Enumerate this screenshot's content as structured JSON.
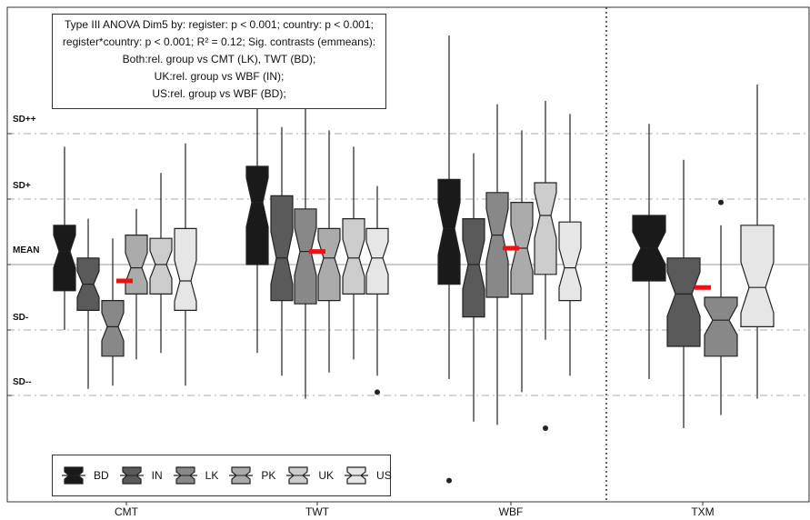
{
  "chart_data": {
    "type": "boxplot",
    "categories": [
      "CMT",
      "TWT",
      "WBF",
      "TXM"
    ],
    "y_levels": [
      {
        "label": "SD++",
        "value": 2
      },
      {
        "label": "SD+",
        "value": 1
      },
      {
        "label": "MEAN",
        "value": 0
      },
      {
        "label": "SD-",
        "value": -1
      },
      {
        "label": "SD--",
        "value": -2
      }
    ],
    "ylim": [
      -3.6,
      3.4
    ],
    "grid": "dashed at SD levels",
    "legend_position": "bottom-left",
    "annotation_lines": [
      "Type III ANOVA Dim5 by: register: p < 0.001; country: p < 0.001;",
      "register*country: p < 0.001; R² = 0.12; Sig. contrasts (emmeans):",
      "Both:rel. group vs CMT (LK), TWT (BD);",
      "UK:rel. group vs WBF (IN);",
      "US:rel. group vs WBF (BD);"
    ],
    "series": [
      {
        "name": "BD",
        "color": "#1a1a1a"
      },
      {
        "name": "IN",
        "color": "#5a5a5a"
      },
      {
        "name": "LK",
        "color": "#888888"
      },
      {
        "name": "PK",
        "color": "#ababab"
      },
      {
        "name": "UK",
        "color": "#cccccc"
      },
      {
        "name": "US",
        "color": "#e6e6e6"
      }
    ],
    "groups": [
      {
        "category": "CMT",
        "mean": -0.25,
        "boxes": [
          {
            "series": "BD",
            "whisker_low": -1.0,
            "q1": -0.4,
            "median": 0.2,
            "q3": 0.6,
            "whisker_high": 1.8
          },
          {
            "series": "IN",
            "whisker_low": -1.9,
            "q1": -0.7,
            "median": -0.3,
            "q3": 0.1,
            "whisker_high": 0.7
          },
          {
            "series": "LK",
            "whisker_low": -1.85,
            "q1": -1.4,
            "median": -0.95,
            "q3": -0.55,
            "whisker_high": 0.4
          },
          {
            "series": "PK",
            "whisker_low": -1.45,
            "q1": -0.45,
            "median": -0.05,
            "q3": 0.45,
            "whisker_high": 0.85
          },
          {
            "series": "UK",
            "whisker_low": -1.35,
            "q1": -0.45,
            "median": 0.0,
            "q3": 0.4,
            "whisker_high": 1.4
          },
          {
            "series": "US",
            "whisker_low": -1.85,
            "q1": -0.7,
            "median": -0.25,
            "q3": 0.55,
            "whisker_high": 1.85
          }
        ]
      },
      {
        "category": "TWT",
        "mean": 0.2,
        "boxes": [
          {
            "series": "BD",
            "whisker_low": -1.35,
            "q1": 0.0,
            "median": 0.95,
            "q3": 1.5,
            "whisker_high": 2.4
          },
          {
            "series": "IN",
            "whisker_low": -1.7,
            "q1": -0.55,
            "median": 0.1,
            "q3": 1.05,
            "whisker_high": 2.1
          },
          {
            "series": "LK",
            "whisker_low": -2.05,
            "q1": -0.6,
            "median": 0.2,
            "q3": 0.85,
            "whisker_high": 2.45
          },
          {
            "series": "PK",
            "whisker_low": -1.65,
            "q1": -0.55,
            "median": 0.1,
            "q3": 0.55,
            "whisker_high": 2.05
          },
          {
            "series": "UK",
            "whisker_low": -1.45,
            "q1": -0.45,
            "median": 0.1,
            "q3": 0.7,
            "whisker_high": 1.8
          },
          {
            "series": "US",
            "whisker_low": -1.7,
            "q1": -0.45,
            "median": 0.1,
            "q3": 0.55,
            "whisker_high": 1.2
          },
          {
            "series": "US",
            "outliers": [
              -1.95
            ]
          }
        ]
      },
      {
        "category": "WBF",
        "mean": 0.25,
        "boxes": [
          {
            "series": "BD",
            "whisker_low": -1.75,
            "q1": -0.3,
            "median": 0.55,
            "q3": 1.3,
            "whisker_high": 3.5,
            "outliers": [
              -3.3
            ]
          },
          {
            "series": "IN",
            "whisker_low": -2.4,
            "q1": -0.8,
            "median": 0.0,
            "q3": 0.7,
            "whisker_high": 1.7
          },
          {
            "series": "LK",
            "whisker_low": -2.45,
            "q1": -0.5,
            "median": 0.45,
            "q3": 1.1,
            "whisker_high": 2.45
          },
          {
            "series": "PK",
            "whisker_low": -1.95,
            "q1": -0.45,
            "median": 0.25,
            "q3": 0.95,
            "whisker_high": 2.05
          },
          {
            "series": "UK",
            "whisker_low": -1.15,
            "q1": -0.15,
            "median": 0.75,
            "q3": 1.25,
            "whisker_high": 2.5,
            "outliers": [
              -2.5
            ]
          },
          {
            "series": "US",
            "whisker_low": -1.7,
            "q1": -0.55,
            "median": -0.05,
            "q3": 0.65,
            "whisker_high": 2.3
          }
        ]
      },
      {
        "category": "TXM",
        "mean": -0.35,
        "boxes": [
          {
            "series": "BD",
            "whisker_low": -1.75,
            "q1": -0.25,
            "median": 0.25,
            "q3": 0.75,
            "whisker_high": 2.15
          },
          {
            "series": "IN",
            "whisker_low": -2.5,
            "q1": -1.25,
            "median": -0.45,
            "q3": 0.1,
            "whisker_high": 1.6
          },
          {
            "series": "LK",
            "whisker_low": -2.3,
            "q1": -1.4,
            "median": -0.85,
            "q3": -0.5,
            "whisker_high": 0.6,
            "outliers": [
              0.95
            ]
          },
          {
            "series": "US",
            "whisker_low": -2.05,
            "q1": -0.95,
            "median": -0.35,
            "q3": 0.6,
            "whisker_high": 2.75
          }
        ]
      }
    ]
  }
}
